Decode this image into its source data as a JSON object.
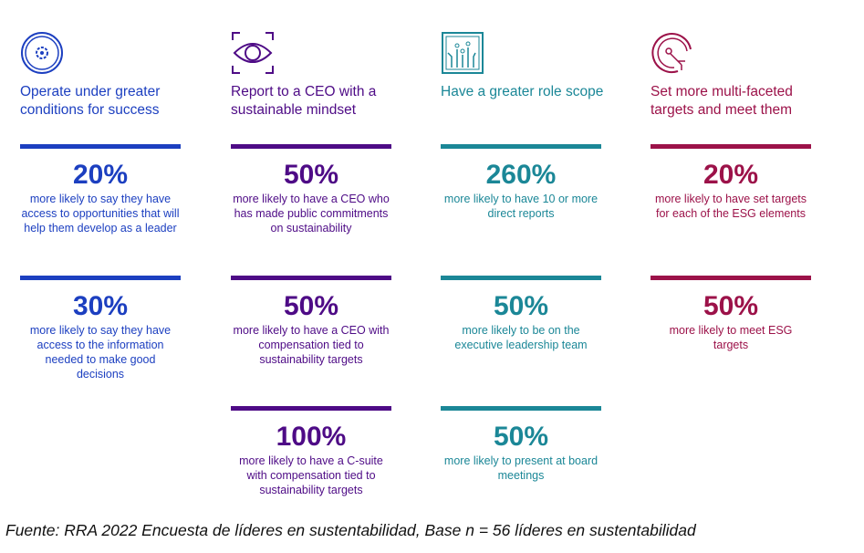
{
  "colors": {
    "blue": "#1c3fc0",
    "purple": "#4e0b86",
    "teal": "#1b8797",
    "crimson": "#9c1249"
  },
  "columns": [
    {
      "icon": "gear-circle-icon",
      "color": "#1c3fc0",
      "title": "Operate under greater conditions for success",
      "stats": [
        {
          "value": "20%",
          "text": "more likely to say they have access to opportunities that will help them develop as a leader"
        },
        {
          "value": "30%",
          "text": "more likely to say they have access to the information needed to make good decisions"
        }
      ]
    },
    {
      "icon": "eye-icon",
      "color": "#4e0b86",
      "title": "Report to a CEO with a sustainable mindset",
      "stats": [
        {
          "value": "50%",
          "text": "more likely to have a CEO who has made public commitments on sustainability"
        },
        {
          "value": "50%",
          "text": "more likely to have a CEO with compensation tied to sustainability targets"
        },
        {
          "value": "100%",
          "text": "more likely to have a C-suite with compensation tied to sustainability targets"
        }
      ]
    },
    {
      "icon": "circuit-icon",
      "color": "#1b8797",
      "title": "Have a greater role scope",
      "stats": [
        {
          "value": "260%",
          "text": "more likely to have 10 or more direct reports"
        },
        {
          "value": "50%",
          "text": "more likely to be on the executive leadership team"
        },
        {
          "value": "50%",
          "text": "more likely to present at board meetings"
        }
      ]
    },
    {
      "icon": "target-icon",
      "color": "#9c1249",
      "title": "Set more multi-faceted targets and meet them",
      "stats": [
        {
          "value": "20%",
          "text": "more likely to have set targets for each of the ESG elements"
        },
        {
          "value": "50%",
          "text": "more likely to meet ESG targets"
        }
      ]
    }
  ],
  "footer": "Fuente: RRA 2022 Encuesta de líderes en sustentabilidad, Base n = 56 líderes en sustentabilidad"
}
